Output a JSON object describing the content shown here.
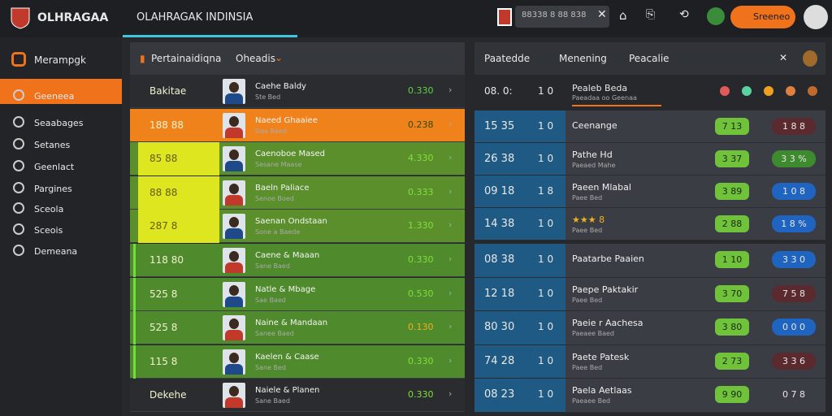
{
  "header": {
    "brand": "OLHRAGAA",
    "tab": "OLAHRAGAK INDINSIA",
    "search": "88338 8 88 838",
    "button": "Sreeneo"
  },
  "sidebar": {
    "title": "Merampgk",
    "items": [
      "Geeneea",
      "Seaabages",
      "Setanes",
      "Geenlact",
      "Pargines",
      "Sceola",
      "Sceois",
      "Demeana"
    ]
  },
  "list": {
    "header": {
      "left": "Pertainaidiqna",
      "right": "Oheadis"
    },
    "rows": [
      {
        "left": "Bakitae",
        "name": "Caehe Baldy",
        "sub": "Ste Bed",
        "value": "0.330"
      },
      {
        "left": "188 88",
        "name": "Naeed Ghaaiee",
        "sub": "Dae Beed",
        "value": "0.238"
      },
      {
        "left": "85 88",
        "name": "Caenoboe Mased",
        "sub": "Sesane Maase",
        "value": "4.330"
      },
      {
        "left": "88 88",
        "name": "Baeln Paliace",
        "sub": "Senoe Boed",
        "value": "0.333"
      },
      {
        "left": "287 8",
        "name": "Saenan Ondstaan",
        "sub": "Sone a Baede",
        "value": "1.330"
      },
      {
        "left": "118 80",
        "name": "Caene & Maaan",
        "sub": "Sane Baed",
        "value": "0.330"
      },
      {
        "left": "525 8",
        "name": "Natle & Mbage",
        "sub": "Sae Baed",
        "value": "0.530"
      },
      {
        "left": "525 8",
        "name": "Naine & Mandaan",
        "sub": "Sanee Baed",
        "value": "0.130"
      },
      {
        "left": "115 8",
        "name": "Kaelen & Caase",
        "sub": "Sane Bed",
        "value": "0.330"
      },
      {
        "left": "Dekehe",
        "name": "Naiele & Planen",
        "sub": "Sane Baed",
        "value": "0.330"
      }
    ]
  },
  "matches": {
    "header": {
      "a": "Paatedde",
      "b": "Menening",
      "c": "Peacalie"
    },
    "top": {
      "time": "08. 0:",
      "score": "1 0",
      "name": "Pealeb Beda",
      "sub": "Paeadaa oo Geenaa"
    },
    "rows": [
      {
        "time": "15 35",
        "score": "1 0",
        "name": "Ceenange",
        "sub": "",
        "b1": "7 13",
        "b2": "1 8 8",
        "color": "#5a2a2e"
      },
      {
        "time": "26 38",
        "score": "1 0",
        "name": "Pathe Hd",
        "sub": "Paeaed Mahe",
        "b1": "3 37",
        "b2": "3 3 %",
        "color": "#3e8a2e"
      },
      {
        "time": "09 18",
        "score": "1 8",
        "name": "Paeen Mlabal",
        "sub": "Paee Bed",
        "b1": "3 89",
        "b2": "1 0 8",
        "color": "#1f64c0"
      },
      {
        "time": "14 38",
        "score": "1 0",
        "name": "★★★ 8",
        "sub": "Paee Bed",
        "b1": "2 88",
        "b2": "1 8 %",
        "color": "#1f64c0"
      },
      {
        "time": "08 38",
        "score": "1 0",
        "name": "Paatarbe Paaien",
        "sub": "",
        "b1": "1 10",
        "b2": "3 3 0",
        "color": "#1f64c0"
      },
      {
        "time": "12 18",
        "score": "1 0",
        "name": "Paepe Paktakir",
        "sub": "Paee Bed",
        "b1": "3 70",
        "b2": "7 5 8",
        "color": "#5a2a2e"
      },
      {
        "time": "80 30",
        "score": "1 0",
        "name": "Paeie r Aachesa",
        "sub": "Paeaee Baed",
        "b1": "3 80",
        "b2": "0 0 0",
        "color": "#1f64c0"
      },
      {
        "time": "74 28",
        "score": "1 0",
        "name": "Paete Patesk",
        "sub": "Paee Bed",
        "b1": "2 73",
        "b2": "3 3 6",
        "color": "#5a2a2e"
      },
      {
        "time": "08 23",
        "score": "1 0",
        "name": "Paela Aetlaas",
        "sub": "Paeaee Bed",
        "b1": "9 90",
        "b2": "0 7 8",
        "color": "#3a3d44"
      }
    ]
  }
}
